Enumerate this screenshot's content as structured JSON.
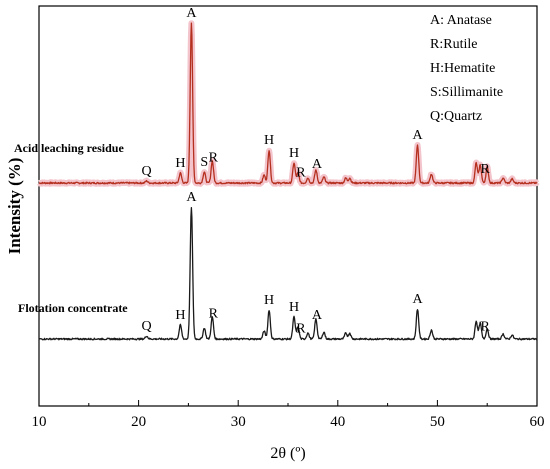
{
  "chart_data": {
    "type": "line",
    "xlabel": "2θ (º)",
    "ylabel": "Intensity  (%)",
    "xlim": [
      10,
      60
    ],
    "x_ticks": [
      "10",
      "20",
      "30",
      "40",
      "50",
      "60"
    ],
    "grid": false,
    "legend_position": "top-right",
    "legend_entries": [
      "A: Anatase",
      "R:Rutile",
      "H:Hematite",
      "S:Sillimanite",
      "Q:Quartz"
    ],
    "series": [
      {
        "name": "Acid leaching residue",
        "color": "#b5301f",
        "band_color": "#f3c4cc",
        "peaks": [
          {
            "x": 20.8,
            "h": 2
          },
          {
            "x": 24.2,
            "h": 10
          },
          {
            "x": 25.3,
            "h": 160
          },
          {
            "x": 26.6,
            "h": 11
          },
          {
            "x": 27.4,
            "h": 22
          },
          {
            "x": 32.6,
            "h": 8
          },
          {
            "x": 33.1,
            "h": 33
          },
          {
            "x": 35.6,
            "h": 20
          },
          {
            "x": 36.0,
            "h": 10
          },
          {
            "x": 37.0,
            "h": 5
          },
          {
            "x": 37.8,
            "h": 13
          },
          {
            "x": 38.6,
            "h": 6
          },
          {
            "x": 40.8,
            "h": 5
          },
          {
            "x": 41.2,
            "h": 5
          },
          {
            "x": 48.0,
            "h": 38
          },
          {
            "x": 49.4,
            "h": 9
          },
          {
            "x": 53.9,
            "h": 20
          },
          {
            "x": 54.3,
            "h": 18
          },
          {
            "x": 55.0,
            "h": 16
          },
          {
            "x": 56.6,
            "h": 5
          },
          {
            "x": 57.5,
            "h": 4
          }
        ],
        "peak_labels": [
          {
            "x": 20.8,
            "text": "Q"
          },
          {
            "x": 24.2,
            "text": "H"
          },
          {
            "x": 25.3,
            "text": "A"
          },
          {
            "x": 26.6,
            "text": "S"
          },
          {
            "x": 27.5,
            "text": "R"
          },
          {
            "x": 33.1,
            "text": "H"
          },
          {
            "x": 35.6,
            "text": "H"
          },
          {
            "x": 36.3,
            "text": "R"
          },
          {
            "x": 37.9,
            "text": "A"
          },
          {
            "x": 48.0,
            "text": "A"
          },
          {
            "x": 54.8,
            "text": "R"
          }
        ]
      },
      {
        "name": "Flotation concentrate",
        "color": "#1a1a1a",
        "peaks": [
          {
            "x": 20.8,
            "h": 3
          },
          {
            "x": 24.2,
            "h": 14
          },
          {
            "x": 25.3,
            "h": 132
          },
          {
            "x": 26.6,
            "h": 11
          },
          {
            "x": 27.4,
            "h": 22
          },
          {
            "x": 32.6,
            "h": 8
          },
          {
            "x": 33.1,
            "h": 29
          },
          {
            "x": 35.6,
            "h": 22
          },
          {
            "x": 36.0,
            "h": 12
          },
          {
            "x": 37.0,
            "h": 6
          },
          {
            "x": 37.8,
            "h": 20
          },
          {
            "x": 38.6,
            "h": 7
          },
          {
            "x": 40.8,
            "h": 6
          },
          {
            "x": 41.2,
            "h": 6
          },
          {
            "x": 48.0,
            "h": 30
          },
          {
            "x": 49.4,
            "h": 9
          },
          {
            "x": 53.9,
            "h": 18
          },
          {
            "x": 54.3,
            "h": 16
          },
          {
            "x": 55.0,
            "h": 10
          },
          {
            "x": 56.6,
            "h": 5
          },
          {
            "x": 57.5,
            "h": 4
          }
        ],
        "peak_labels": [
          {
            "x": 20.8,
            "text": "Q"
          },
          {
            "x": 24.2,
            "text": "H"
          },
          {
            "x": 25.3,
            "text": "A"
          },
          {
            "x": 27.5,
            "text": "R"
          },
          {
            "x": 33.1,
            "text": "H"
          },
          {
            "x": 35.6,
            "text": "H"
          },
          {
            "x": 36.3,
            "text": "R"
          },
          {
            "x": 37.9,
            "text": "A"
          },
          {
            "x": 48.0,
            "text": "A"
          },
          {
            "x": 54.8,
            "text": "R"
          }
        ]
      }
    ]
  }
}
